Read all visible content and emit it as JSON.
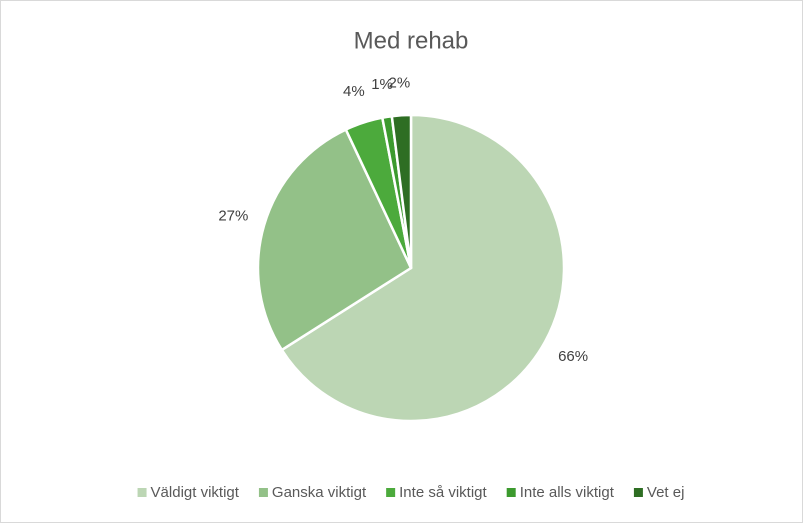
{
  "chart_data": {
    "type": "pie",
    "title": "Med rehab",
    "categories": [
      "Väldigt viktigt",
      "Ganska viktigt",
      "Inte så viktigt",
      "Inte alls viktigt",
      "Vet ej"
    ],
    "values": [
      66,
      27,
      4,
      1,
      2
    ],
    "value_labels": [
      "66%",
      "27%",
      "4%",
      "1%",
      "2%"
    ],
    "colors": [
      "#bcd6b4",
      "#93c188",
      "#4caa3c",
      "#3c9a2e",
      "#2e6e23"
    ],
    "legend": "bottom"
  }
}
